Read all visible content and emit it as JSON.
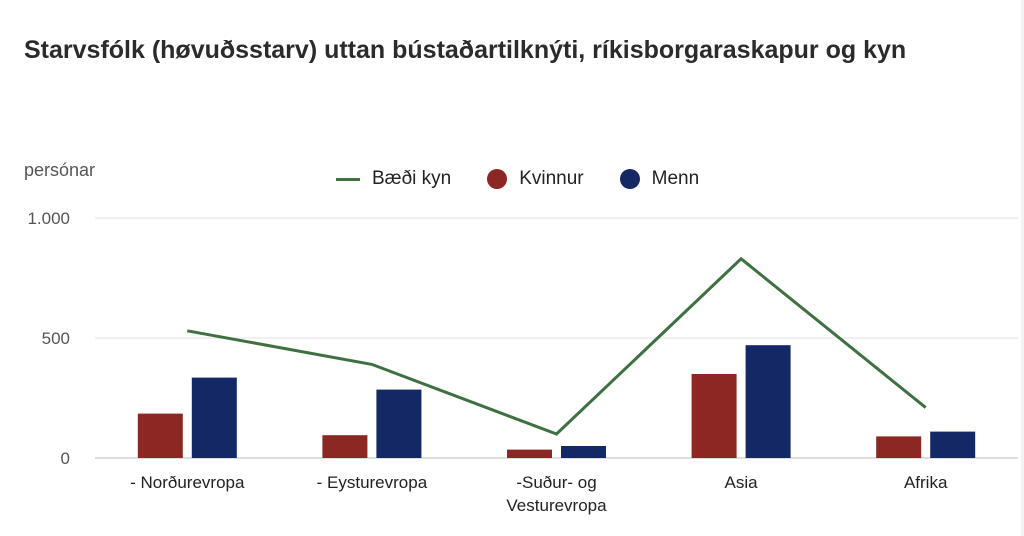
{
  "title": "Starvsfólk (høvuðsstarv) uttan bústaðartilknýti, ríkisborgaraskapur og kyn",
  "chart_data": {
    "type": "bar",
    "ylabel": "persónar",
    "ylim": [
      0,
      1000
    ],
    "yticks": [
      {
        "value": 0,
        "label": "0"
      },
      {
        "value": 500,
        "label": "500"
      },
      {
        "value": 1000,
        "label": "1.000"
      }
    ],
    "categories": [
      [
        "- Norðurevropa"
      ],
      [
        "- Eysturevropa"
      ],
      [
        "-Suður- og",
        "Vesturevropa"
      ],
      [
        "Asia"
      ],
      [
        "Afrika"
      ]
    ],
    "series": [
      {
        "name": "Bæði kyn",
        "kind": "line",
        "color": "#3f7041",
        "values": [
          530,
          390,
          100,
          830,
          210
        ]
      },
      {
        "name": "Kvinnur",
        "kind": "bar",
        "color": "#8c2724",
        "values": [
          185,
          95,
          35,
          350,
          90
        ]
      },
      {
        "name": "Menn",
        "kind": "bar",
        "color": "#152866",
        "values": [
          335,
          285,
          50,
          470,
          110
        ]
      }
    ],
    "grid": true,
    "legend": "top"
  }
}
